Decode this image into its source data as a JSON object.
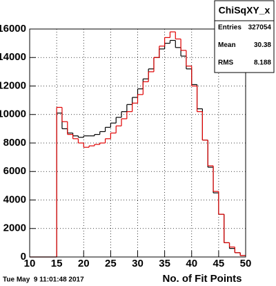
{
  "chart_data": {
    "type": "histogram",
    "x_label": "No. of Fit Points",
    "footer": "Tue May  9 11:01:48 2017",
    "bins": [
      10,
      11,
      12,
      13,
      14,
      15,
      16,
      17,
      18,
      19,
      20,
      21,
      22,
      23,
      24,
      25,
      26,
      27,
      28,
      29,
      30,
      31,
      32,
      33,
      34,
      35,
      36,
      37,
      38,
      39,
      40,
      41,
      42,
      43,
      44,
      45,
      46,
      47,
      48,
      49,
      50
    ],
    "series": [
      {
        "color": "#000000",
        "values": [
          0,
          0,
          0,
          0,
          0,
          10100,
          9000,
          8700,
          8500,
          8400,
          8500,
          8500,
          8600,
          8800,
          9100,
          9400,
          9800,
          10200,
          10700,
          11200,
          11800,
          12500,
          13200,
          14000,
          14600,
          15000,
          15200,
          14700,
          14100,
          13200,
          12100,
          10400,
          8200,
          6300,
          4500,
          3000,
          1000,
          600,
          300,
          100
        ]
      },
      {
        "color": "#e00000",
        "values": [
          0,
          0,
          0,
          0,
          0,
          10500,
          9500,
          8600,
          8300,
          8000,
          7700,
          7800,
          7900,
          8000,
          8300,
          8700,
          9200,
          9700,
          10200,
          10800,
          11400,
          12300,
          13000,
          14000,
          14800,
          15400,
          15800,
          15300,
          14500,
          13400,
          12000,
          10200,
          8200,
          6400,
          4600,
          3000,
          1000,
          700,
          300,
          100
        ]
      }
    ],
    "xlim": [
      10,
      50
    ],
    "xticks": [
      10,
      15,
      20,
      25,
      30,
      35,
      40,
      45,
      50
    ],
    "ylim": [
      0,
      16000
    ],
    "yticks": [
      0,
      2000,
      4000,
      6000,
      8000,
      10000,
      12000,
      14000,
      16000
    ],
    "grid": true,
    "stats": {
      "title": "ChiSqXY_x",
      "rows": [
        {
          "label": "Entries",
          "value": 327054
        },
        {
          "label": "Mean",
          "value": 30.38
        },
        {
          "label": "RMS",
          "value": 8.188
        }
      ]
    }
  }
}
